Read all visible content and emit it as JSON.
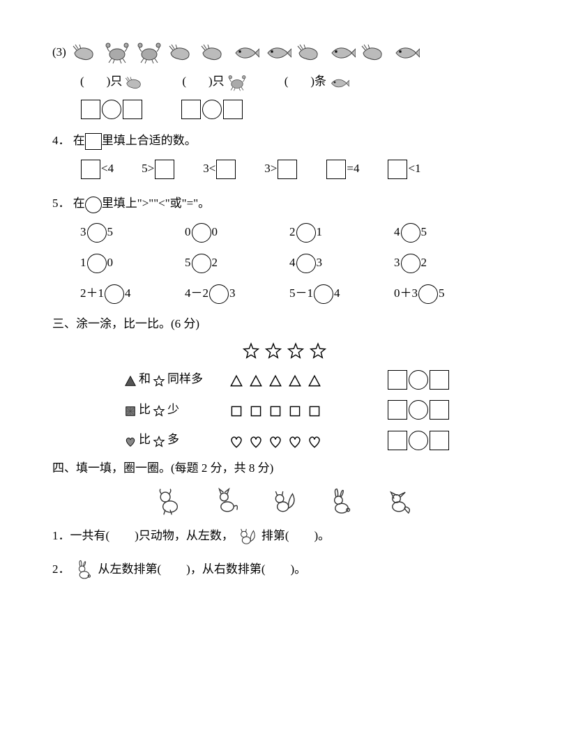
{
  "q3": {
    "label": "(3)",
    "top_icons": [
      "shrimp",
      "crab",
      "crab",
      "shrimp",
      "shrimp",
      "fish",
      "fish",
      "shrimp",
      "fish",
      "shrimp",
      "fish"
    ],
    "blanks": [
      {
        "left": "(",
        "right": ")",
        "unit": "只",
        "icon": "shrimp"
      },
      {
        "left": "(",
        "right": ")",
        "unit": "只",
        "icon": "crab"
      },
      {
        "left": "(",
        "right": ")",
        "unit": "条",
        "icon": "fish"
      }
    ]
  },
  "q4": {
    "num": "4．",
    "text": "在",
    "text2": "里填上合适的数。",
    "items": [
      "<4",
      "5>",
      "3<",
      "3>",
      "=4",
      "<1"
    ],
    "pos": [
      "before",
      "after",
      "after",
      "after",
      "before",
      "before"
    ]
  },
  "q5": {
    "num": "5．",
    "text": "在",
    "text2": "里填上\">\"\"<\"或\"=\"。",
    "rows": [
      [
        "3",
        "5",
        "0",
        "0",
        "2",
        "1",
        "4",
        "5"
      ],
      [
        "1",
        "0",
        "5",
        "2",
        "4",
        "3",
        "3",
        "2"
      ],
      [
        "2＋1",
        "4",
        "4－2",
        "3",
        "5－1",
        "4",
        "0＋3",
        "5"
      ]
    ]
  },
  "s3": {
    "title": "三、涂一涂，比一比。(6 分)",
    "stars_count": 4,
    "rows": [
      {
        "left_icon": "triangle-filled",
        "mid": "和",
        "right_icon": "star",
        "tail": "同样多",
        "shapes": "triangle",
        "count": 5
      },
      {
        "left_icon": "square-filled",
        "mid": "比",
        "right_icon": "star",
        "tail": "少",
        "shapes": "square",
        "count": 5
      },
      {
        "left_icon": "heart-filled",
        "mid": "比",
        "right_icon": "star",
        "tail": "多",
        "shapes": "heart",
        "count": 5
      }
    ]
  },
  "s4": {
    "title": "四、填一填，圈一圈。(每题 2 分，共 8 分)",
    "animals": [
      "dog",
      "cat",
      "squirrel",
      "rabbit",
      "fox"
    ],
    "q1a": "1．一共有(",
    "q1b": ")只动物，从左数，",
    "q1c": "排第(",
    "q1d": ")。",
    "q1_icon": "squirrel",
    "q2a": "2．",
    "q2b": "从左数排第(",
    "q2c": ")，从右数排第(",
    "q2d": ")。",
    "q2_icon": "rabbit"
  }
}
